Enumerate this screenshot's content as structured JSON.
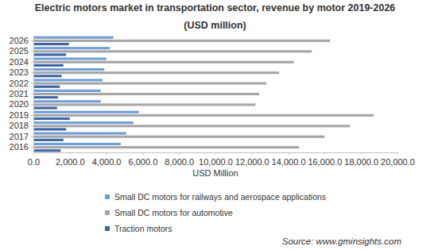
{
  "chart_data": {
    "type": "bar",
    "orientation": "horizontal",
    "title": "Electric motors market in transportation sector, revenue by motor 2019-2026",
    "subtitle": "(USD million)",
    "x_label": "USD Million",
    "annotations": [
      "Source: www.gminsights.com"
    ],
    "categories": [
      "2016",
      "2017",
      "2018",
      "2019",
      "2020",
      "2021",
      "2022",
      "2023",
      "2024",
      "2025",
      "2026"
    ],
    "series": [
      {
        "name": "Small DC motors for railways and aerospace applications",
        "color": "#6f9fd8",
        "values": [
          4800,
          5100,
          5500,
          5800,
          3700,
          3700,
          3800,
          3900,
          4000,
          4200,
          4400
        ]
      },
      {
        "name": "Small DC motors for automotive",
        "color": "#a6a6a6",
        "values": [
          14600,
          16000,
          17400,
          18700,
          12200,
          12400,
          12800,
          13500,
          14300,
          15300,
          16300
        ]
      },
      {
        "name": "Traction motors",
        "color": "#3d64a8",
        "values": [
          1500,
          1650,
          1800,
          2000,
          1300,
          1350,
          1450,
          1550,
          1650,
          1800,
          1950
        ]
      }
    ],
    "xlim": [
      0,
      20000
    ],
    "xticks": [
      {
        "value": 0,
        "label": "0.0"
      },
      {
        "value": 2000,
        "label": "2,000.0"
      },
      {
        "value": 4000,
        "label": "4,000.0"
      },
      {
        "value": 6000,
        "label": "6,000.0"
      },
      {
        "value": 8000,
        "label": "8,000.0"
      },
      {
        "value": 10000,
        "label": "10,000.0"
      },
      {
        "value": 12000,
        "label": "12,000.0"
      },
      {
        "value": 14000,
        "label": "14,000.0"
      },
      {
        "value": 16000,
        "label": "16,000.0"
      },
      {
        "value": 18000,
        "label": "18,000.0"
      },
      {
        "value": 20000,
        "label": "20,000.0"
      }
    ],
    "grid": false,
    "legend": "bottom"
  }
}
